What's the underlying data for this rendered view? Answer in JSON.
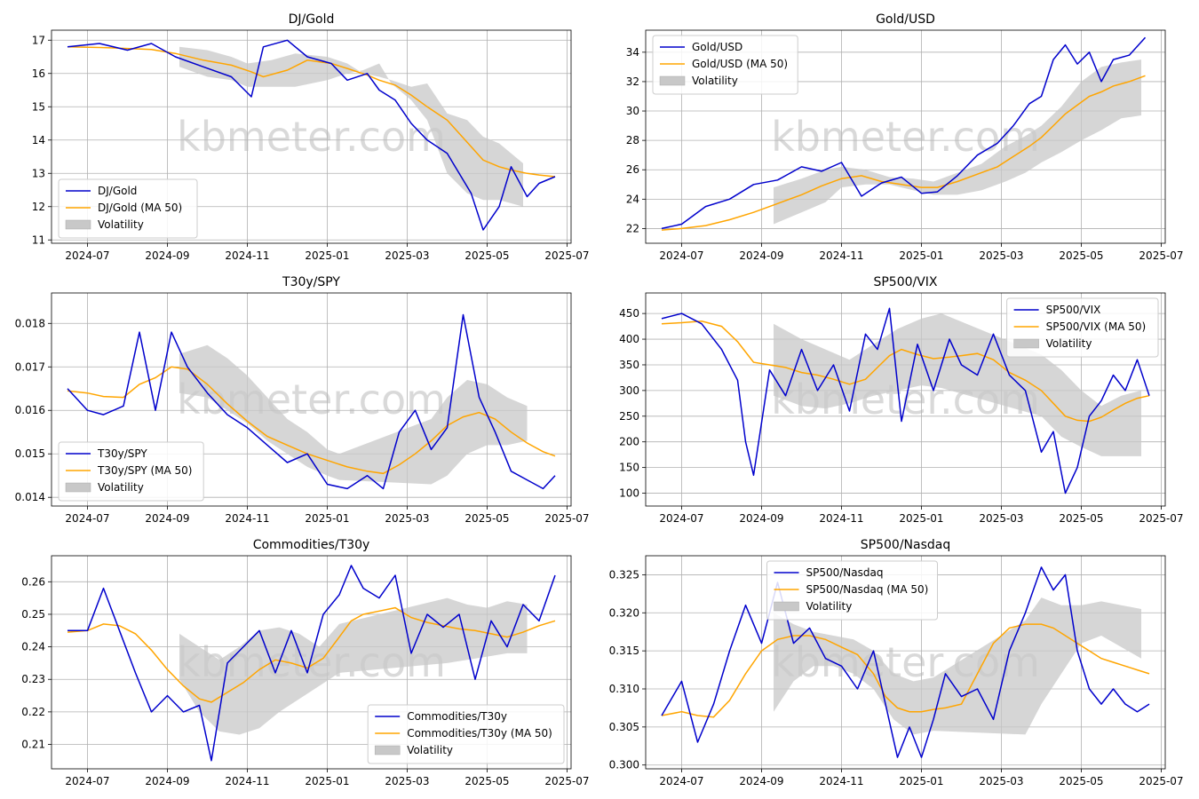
{
  "watermark": "kbmeter.com",
  "colors": {
    "series": "#0000cc",
    "ma": "#ffa500",
    "band": "#c8c8c8",
    "grid": "#b0b0b0"
  },
  "x_ticks": [
    "2024-07",
    "2024-09",
    "2024-11",
    "2025-01",
    "2025-03",
    "2025-05",
    "2025-07"
  ],
  "x_tick_months": [
    0,
    2,
    4,
    6,
    8,
    10,
    12
  ],
  "chart_data": [
    {
      "type": "line",
      "title": "DJ/Gold",
      "legend_position": "lower-left",
      "legend": [
        "DJ/Gold",
        "DJ/Gold (MA 50)",
        "Volatility"
      ],
      "ylim": [
        10.9,
        17.3
      ],
      "yticks": [
        11,
        12,
        13,
        14,
        15,
        16,
        17
      ],
      "ytick_labels": [
        "11",
        "12",
        "13",
        "14",
        "15",
        "16",
        "17"
      ],
      "x": [
        -0.5,
        0.3,
        1.0,
        1.6,
        2.2,
        2.9,
        3.6,
        4.1,
        4.4,
        5.0,
        5.5,
        6.1,
        6.5,
        7.0,
        7.3,
        7.7,
        8.1,
        8.5,
        9.0,
        9.3,
        9.6,
        9.9,
        10.3,
        10.6,
        11.0,
        11.3,
        11.7
      ],
      "series": [
        16.8,
        16.9,
        16.7,
        16.9,
        16.5,
        16.2,
        15.9,
        15.3,
        16.8,
        17.0,
        16.5,
        16.3,
        15.8,
        16.0,
        15.5,
        15.2,
        14.5,
        14.0,
        13.6,
        13.0,
        12.4,
        11.3,
        12.0,
        13.2,
        12.3,
        12.7,
        12.9
      ],
      "ma": [
        16.8,
        16.78,
        16.75,
        16.72,
        16.6,
        16.4,
        16.25,
        16.05,
        15.9,
        16.1,
        16.4,
        16.3,
        16.15,
        15.95,
        15.8,
        15.65,
        15.35,
        15.0,
        14.6,
        14.2,
        13.8,
        13.4,
        13.2,
        13.1,
        13.0,
        12.95,
        12.9
      ],
      "band_start": 2.3,
      "band_end": 7.6,
      "band_x": [
        2.3,
        3.0,
        3.6,
        4.0,
        4.6,
        5.2,
        6.0,
        6.5,
        6.9,
        7.3,
        7.6,
        8.1,
        8.5,
        9.0,
        9.5,
        9.9,
        10.3,
        10.6,
        10.9
      ],
      "band_upper": [
        16.8,
        16.7,
        16.5,
        16.3,
        16.4,
        16.6,
        16.5,
        16.3,
        16.0,
        15.9,
        15.8,
        15.6,
        15.7,
        14.8,
        14.6,
        14.1,
        13.9,
        13.6,
        13.3
      ],
      "band_lower": [
        16.2,
        15.9,
        15.8,
        15.6,
        15.6,
        15.6,
        15.8,
        16.0,
        16.1,
        16.3,
        15.7,
        15.2,
        14.6,
        13.0,
        12.4,
        12.2,
        12.2,
        12.1,
        12.0
      ]
    },
    {
      "type": "line",
      "title": "Gold/USD",
      "legend_position": "upper-left",
      "legend": [
        "Gold/USD",
        "Gold/USD (MA 50)",
        "Volatility"
      ],
      "ylim": [
        21.0,
        35.5
      ],
      "yticks": [
        22,
        24,
        26,
        28,
        30,
        32,
        34
      ],
      "ytick_labels": [
        "22",
        "24",
        "26",
        "28",
        "30",
        "32",
        "34"
      ],
      "x": [
        -0.5,
        0.0,
        0.6,
        1.2,
        1.8,
        2.4,
        3.0,
        3.5,
        4.0,
        4.5,
        5.0,
        5.5,
        6.0,
        6.4,
        6.9,
        7.4,
        7.9,
        8.3,
        8.7,
        9.0,
        9.3,
        9.6,
        9.9,
        10.2,
        10.5,
        10.8,
        11.2,
        11.6
      ],
      "series": [
        22.0,
        22.3,
        23.5,
        24.0,
        25.0,
        25.3,
        26.2,
        25.9,
        26.5,
        24.2,
        25.1,
        25.5,
        24.4,
        24.5,
        25.6,
        27.0,
        27.8,
        29.0,
        30.5,
        31.0,
        33.5,
        34.5,
        33.2,
        34.0,
        32.0,
        33.5,
        33.8,
        35.0
      ],
      "ma": [
        21.9,
        22.0,
        22.2,
        22.6,
        23.1,
        23.7,
        24.3,
        24.9,
        25.4,
        25.6,
        25.2,
        25.0,
        24.8,
        24.8,
        25.2,
        25.7,
        26.2,
        26.9,
        27.6,
        28.2,
        29.0,
        29.8,
        30.4,
        31.0,
        31.3,
        31.7,
        32.0,
        32.4
      ],
      "band_start": 2.3,
      "band_end": 11.5,
      "band_x": [
        2.3,
        3.0,
        3.6,
        4.0,
        4.6,
        5.2,
        5.8,
        6.3,
        6.9,
        7.5,
        8.1,
        8.6,
        9.0,
        9.5,
        10.0,
        10.5,
        11.0,
        11.5
      ],
      "band_upper": [
        24.8,
        25.4,
        26.0,
        26.2,
        26.0,
        25.5,
        25.4,
        25.2,
        25.8,
        26.4,
        27.6,
        28.3,
        29.0,
        30.3,
        32.0,
        33.0,
        33.3,
        33.5
      ],
      "band_lower": [
        22.3,
        23.1,
        23.8,
        24.8,
        25.0,
        25.0,
        24.6,
        24.3,
        24.3,
        24.6,
        25.2,
        25.8,
        26.5,
        27.2,
        28.0,
        28.7,
        29.5,
        29.7
      ]
    },
    {
      "type": "line",
      "title": "T30y/SPY",
      "legend_position": "lower-left",
      "legend": [
        "T30y/SPY",
        "T30y/SPY (MA 50)",
        "Volatility"
      ],
      "ylim": [
        0.0138,
        0.0187
      ],
      "yticks": [
        0.014,
        0.015,
        0.016,
        0.017,
        0.018
      ],
      "ytick_labels": [
        "0.014",
        "0.015",
        "0.016",
        "0.017",
        "0.018"
      ],
      "x": [
        -0.5,
        0.0,
        0.4,
        0.9,
        1.3,
        1.7,
        2.1,
        2.5,
        3.0,
        3.5,
        4.0,
        4.5,
        5.0,
        5.5,
        6.0,
        6.5,
        7.0,
        7.4,
        7.8,
        8.2,
        8.6,
        9.0,
        9.4,
        9.8,
        10.2,
        10.6,
        11.0,
        11.4,
        11.7
      ],
      "series": [
        0.0165,
        0.016,
        0.0159,
        0.0161,
        0.0178,
        0.016,
        0.0178,
        0.017,
        0.0164,
        0.0159,
        0.0156,
        0.0152,
        0.0148,
        0.015,
        0.0143,
        0.0142,
        0.0145,
        0.0142,
        0.0155,
        0.016,
        0.0151,
        0.0156,
        0.0182,
        0.0163,
        0.0155,
        0.0146,
        0.0144,
        0.0142,
        0.0145
      ],
      "ma": [
        0.01645,
        0.0164,
        0.01632,
        0.0163,
        0.0166,
        0.01675,
        0.017,
        0.01695,
        0.0166,
        0.01615,
        0.01575,
        0.0154,
        0.0152,
        0.015,
        0.01485,
        0.0147,
        0.0146,
        0.01455,
        0.01475,
        0.015,
        0.0153,
        0.01565,
        0.01585,
        0.01595,
        0.0158,
        0.0155,
        0.01525,
        0.01505,
        0.01495
      ],
      "band_start": 2.3,
      "band_end": 11.0,
      "band_x": [
        2.3,
        3.0,
        3.5,
        4.0,
        4.5,
        5.0,
        5.5,
        6.0,
        6.3,
        8.6,
        9.0,
        9.5,
        10.0,
        10.5,
        11.0
      ],
      "band_upper": [
        0.0173,
        0.0175,
        0.0172,
        0.0168,
        0.0163,
        0.0158,
        0.0155,
        0.0151,
        0.015,
        0.0158,
        0.0163,
        0.0167,
        0.0166,
        0.0163,
        0.0161
      ],
      "band_lower": [
        0.0164,
        0.0163,
        0.016,
        0.0157,
        0.0153,
        0.015,
        0.0147,
        0.0145,
        0.0144,
        0.0143,
        0.0145,
        0.015,
        0.0152,
        0.0152,
        0.0153
      ]
    },
    {
      "type": "line",
      "title": "SP500/VIX",
      "legend_position": "upper-right",
      "legend": [
        "SP500/VIX",
        "SP500/VIX (MA 50)",
        "Volatility"
      ],
      "ylim": [
        75,
        490
      ],
      "yticks": [
        100,
        150,
        200,
        250,
        300,
        350,
        400,
        450
      ],
      "ytick_labels": [
        "100",
        "150",
        "200",
        "250",
        "300",
        "350",
        "400",
        "450"
      ],
      "x": [
        -0.5,
        0.0,
        0.5,
        1.0,
        1.4,
        1.6,
        1.8,
        2.2,
        2.6,
        3.0,
        3.4,
        3.8,
        4.2,
        4.6,
        4.9,
        5.2,
        5.5,
        5.9,
        6.3,
        6.7,
        7.0,
        7.4,
        7.8,
        8.2,
        8.6,
        9.0,
        9.3,
        9.6,
        9.9,
        10.2,
        10.5,
        10.8,
        11.1,
        11.4,
        11.7
      ],
      "series": [
        440,
        450,
        430,
        380,
        320,
        200,
        135,
        340,
        290,
        380,
        300,
        350,
        260,
        410,
        380,
        460,
        240,
        390,
        300,
        400,
        350,
        330,
        410,
        330,
        300,
        180,
        220,
        100,
        150,
        250,
        280,
        330,
        300,
        360,
        290
      ],
      "ma": [
        430,
        432,
        435,
        425,
        395,
        375,
        355,
        350,
        345,
        335,
        330,
        322,
        312,
        322,
        345,
        368,
        380,
        370,
        362,
        365,
        368,
        372,
        360,
        335,
        320,
        300,
        275,
        250,
        242,
        240,
        248,
        262,
        275,
        285,
        290
      ],
      "band_start": 2.3,
      "band_end": 11.5,
      "band_x": [
        2.3,
        3.0,
        3.6,
        4.2,
        4.8,
        5.4,
        6.0,
        6.5,
        9.0,
        9.5,
        10.0,
        10.5,
        11.0,
        11.5
      ],
      "band_upper": [
        430,
        400,
        380,
        360,
        390,
        420,
        440,
        450,
        370,
        340,
        300,
        270,
        290,
        300
      ],
      "band_lower": [
        290,
        270,
        265,
        275,
        290,
        300,
        310,
        305,
        250,
        210,
        190,
        172,
        172,
        172
      ]
    },
    {
      "type": "line",
      "title": "Commodities/T30y",
      "legend_position": "lower-right",
      "legend": [
        "Commodities/T30y",
        "Commodities/T30y (MA 50)",
        "Volatility"
      ],
      "ylim": [
        0.2025,
        0.268
      ],
      "yticks": [
        0.21,
        0.22,
        0.23,
        0.24,
        0.25,
        0.26
      ],
      "ytick_labels": [
        "0.21",
        "0.22",
        "0.23",
        "0.24",
        "0.25",
        "0.26"
      ],
      "x": [
        -0.5,
        0.0,
        0.4,
        0.8,
        1.2,
        1.6,
        2.0,
        2.4,
        2.8,
        3.1,
        3.5,
        3.9,
        4.3,
        4.7,
        5.1,
        5.5,
        5.9,
        6.3,
        6.6,
        6.9,
        7.3,
        7.7,
        8.1,
        8.5,
        8.9,
        9.3,
        9.7,
        10.1,
        10.5,
        10.9,
        11.3,
        11.7
      ],
      "series": [
        0.245,
        0.245,
        0.258,
        0.245,
        0.232,
        0.22,
        0.225,
        0.22,
        0.222,
        0.205,
        0.235,
        0.24,
        0.245,
        0.232,
        0.245,
        0.232,
        0.25,
        0.256,
        0.265,
        0.258,
        0.255,
        0.262,
        0.238,
        0.25,
        0.246,
        0.25,
        0.23,
        0.248,
        0.24,
        0.253,
        0.248,
        0.262
      ],
      "ma": [
        0.2445,
        0.245,
        0.247,
        0.2465,
        0.244,
        0.239,
        0.233,
        0.228,
        0.224,
        0.223,
        0.226,
        0.229,
        0.233,
        0.236,
        0.235,
        0.2335,
        0.2365,
        0.243,
        0.248,
        0.25,
        0.251,
        0.252,
        0.249,
        0.2475,
        0.2465,
        0.2455,
        0.245,
        0.244,
        0.243,
        0.2445,
        0.2465,
        0.248
      ],
      "band_start": 2.3,
      "band_end": 11.0,
      "band_x": [
        2.3,
        2.8,
        3.3,
        3.8,
        4.3,
        4.8,
        5.3,
        5.8,
        6.3,
        9.0,
        9.5,
        10.0,
        10.5,
        11.0
      ],
      "band_upper": [
        0.244,
        0.24,
        0.236,
        0.24,
        0.245,
        0.246,
        0.244,
        0.24,
        0.247,
        0.255,
        0.253,
        0.252,
        0.254,
        0.253
      ],
      "band_lower": [
        0.23,
        0.22,
        0.214,
        0.213,
        0.215,
        0.22,
        0.224,
        0.228,
        0.232,
        0.235,
        0.236,
        0.237,
        0.238,
        0.238
      ]
    },
    {
      "type": "line",
      "title": "SP500/Nasdaq",
      "legend_position": "upper-center",
      "legend": [
        "SP500/Nasdaq",
        "SP500/Nasdaq (MA 50)",
        "Volatility"
      ],
      "ylim": [
        0.2995,
        0.3275
      ],
      "yticks": [
        0.3,
        0.305,
        0.31,
        0.315,
        0.32,
        0.325
      ],
      "ytick_labels": [
        "0.300",
        "0.305",
        "0.310",
        "0.315",
        "0.320",
        "0.325"
      ],
      "x": [
        -0.5,
        0.0,
        0.4,
        0.8,
        1.2,
        1.6,
        2.0,
        2.4,
        2.8,
        3.2,
        3.6,
        4.0,
        4.4,
        4.8,
        5.1,
        5.4,
        5.7,
        6.0,
        6.3,
        6.6,
        7.0,
        7.4,
        7.8,
        8.2,
        8.6,
        9.0,
        9.3,
        9.6,
        9.9,
        10.2,
        10.5,
        10.8,
        11.1,
        11.4,
        11.7
      ],
      "series": [
        0.3065,
        0.311,
        0.303,
        0.308,
        0.315,
        0.321,
        0.316,
        0.324,
        0.316,
        0.318,
        0.314,
        0.313,
        0.31,
        0.315,
        0.308,
        0.301,
        0.305,
        0.301,
        0.306,
        0.312,
        0.309,
        0.31,
        0.306,
        0.315,
        0.32,
        0.326,
        0.323,
        0.325,
        0.315,
        0.31,
        0.308,
        0.31,
        0.308,
        0.307,
        0.308
      ],
      "ma": [
        0.3065,
        0.307,
        0.3065,
        0.3063,
        0.3085,
        0.312,
        0.315,
        0.3165,
        0.317,
        0.317,
        0.3165,
        0.3155,
        0.3145,
        0.312,
        0.309,
        0.3075,
        0.307,
        0.307,
        0.3073,
        0.3075,
        0.308,
        0.312,
        0.316,
        0.318,
        0.3185,
        0.3185,
        0.318,
        0.317,
        0.316,
        0.315,
        0.314,
        0.3135,
        0.313,
        0.3125,
        0.312
      ],
      "band_start": 2.3,
      "band_end": 11.5,
      "band_x": [
        2.3,
        2.8,
        3.3,
        3.8,
        4.3,
        4.8,
        5.3,
        5.8,
        6.3,
        8.6,
        9.0,
        9.5,
        10.0,
        10.5,
        11.0,
        11.5
      ],
      "band_upper": [
        0.32,
        0.3185,
        0.3175,
        0.317,
        0.3165,
        0.315,
        0.312,
        0.311,
        0.3115,
        0.319,
        0.322,
        0.321,
        0.321,
        0.3215,
        0.321,
        0.3205
      ],
      "band_lower": [
        0.307,
        0.311,
        0.313,
        0.313,
        0.312,
        0.31,
        0.306,
        0.304,
        0.3045,
        0.304,
        0.308,
        0.312,
        0.316,
        0.317,
        0.3155,
        0.314
      ]
    }
  ]
}
